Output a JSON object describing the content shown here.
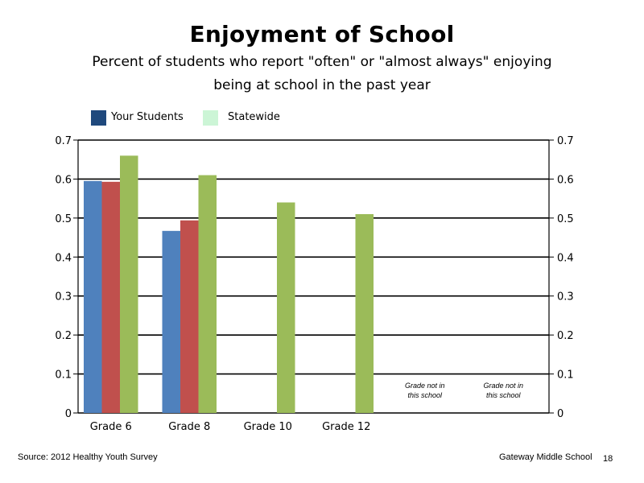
{
  "title": "Enjoyment of School",
  "subtitle_line1": "Percent of students who report \"often\" or \"almost always\" enjoying",
  "subtitle_line2": "being at school in the past year",
  "legend": [
    {
      "label": "Your Students",
      "color": "#1f497d"
    },
    {
      "label": "Statewide",
      "color": "#ccf5d6"
    }
  ],
  "footer": {
    "source": "Source: 2012 Healthy Youth Survey",
    "school": "Gateway Middle  School",
    "page_number": "18"
  },
  "chart_data": {
    "type": "bar",
    "categories": [
      "Grade 6",
      "Grade 8",
      "Grade 10",
      "Grade 12",
      "",
      ""
    ],
    "series": [
      {
        "color": "#4f81bd",
        "values": [
          0.595,
          0.467,
          null,
          null,
          null,
          null
        ]
      },
      {
        "color": "#c0504d",
        "values": [
          0.593,
          0.494,
          null,
          null,
          null,
          null
        ]
      },
      {
        "color": "#9bbb59",
        "values": [
          0.66,
          0.61,
          0.54,
          0.51,
          null,
          null
        ]
      }
    ],
    "annotations": [
      {
        "category_index": 4,
        "lines": [
          "Grade not in",
          "this school"
        ]
      },
      {
        "category_index": 5,
        "lines": [
          "Grade not in",
          "this school"
        ]
      }
    ],
    "ylim": [
      0,
      0.7
    ],
    "yticks": [
      "0",
      "0.1",
      "0.2",
      "0.3",
      "0.4",
      "0.5",
      "0.6",
      "0.7"
    ],
    "right_axis_ticks": [
      "0",
      "0.1",
      "0.2",
      "0.3",
      "0.4",
      "0.5",
      "0.6",
      "0.7"
    ],
    "grid": true
  }
}
